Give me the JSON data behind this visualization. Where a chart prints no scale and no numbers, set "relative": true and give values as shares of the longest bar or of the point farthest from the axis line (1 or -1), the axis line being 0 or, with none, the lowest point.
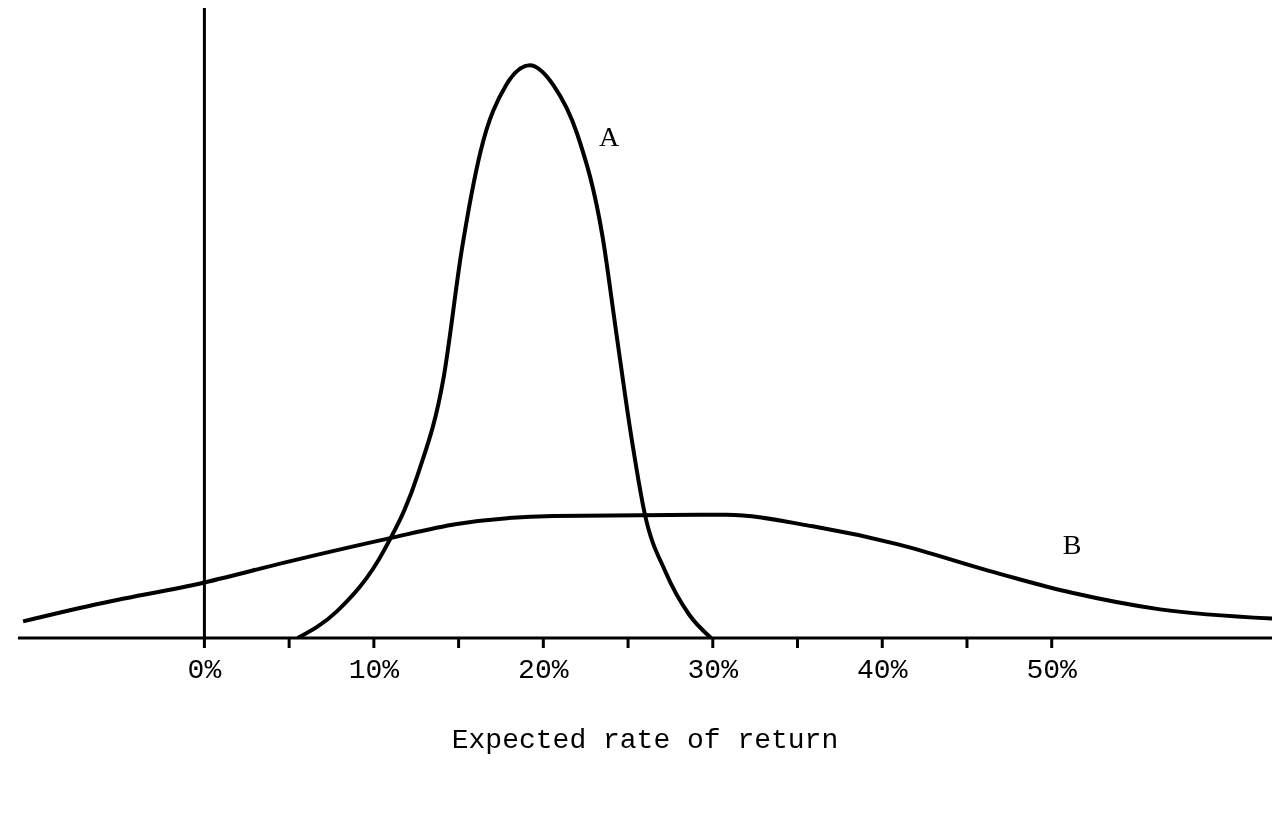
{
  "chart_data": {
    "type": "line",
    "relative": true,
    "xlabel": "Expected rate of return",
    "xlim": [
      -11,
      63
    ],
    "xticks": [
      {
        "value": 0,
        "label": "0%"
      },
      {
        "value": 5,
        "label": null
      },
      {
        "value": 10,
        "label": "10%"
      },
      {
        "value": 15,
        "label": null
      },
      {
        "value": 20,
        "label": "20%"
      },
      {
        "value": 25,
        "label": null
      },
      {
        "value": 30,
        "label": "30%"
      },
      {
        "value": 35,
        "label": null
      },
      {
        "value": 40,
        "label": "40%"
      },
      {
        "value": 45,
        "label": null
      },
      {
        "value": 50,
        "label": "50%"
      }
    ],
    "series": [
      {
        "name": "A",
        "color": "#000000",
        "x": [
          5.5,
          7.8,
          10.6,
          12.6,
          14.1,
          15.2,
          16.3,
          17.8,
          19.2,
          20.6,
          22.0,
          23.5,
          24.3,
          25.2,
          26.0,
          27.2,
          28.6,
          29.9
        ],
        "values": [
          0,
          0.046,
          0.153,
          0.286,
          0.452,
          0.68,
          0.85,
          0.965,
          1,
          0.965,
          0.88,
          0.7,
          0.534,
          0.35,
          0.215,
          0.116,
          0.041,
          0
        ]
      },
      {
        "name": "B",
        "color": "#000000",
        "x": [
          -10.7,
          -6.5,
          0,
          4.9,
          10.9,
          14.9,
          20.6,
          29.2,
          30.8,
          35.9,
          41,
          46.1,
          51.2,
          56.4,
          63
        ],
        "values": [
          0.029,
          0.058,
          0.097,
          0.133,
          0.174,
          0.199,
          0.213,
          0.215,
          0.215,
          0.195,
          0.163,
          0.119,
          0.079,
          0.05,
          0.034
        ]
      }
    ],
    "ref_lines": [
      {
        "axis": "x",
        "value": 0,
        "color": "#000000"
      }
    ],
    "marker": "none",
    "line_style": "solid"
  }
}
